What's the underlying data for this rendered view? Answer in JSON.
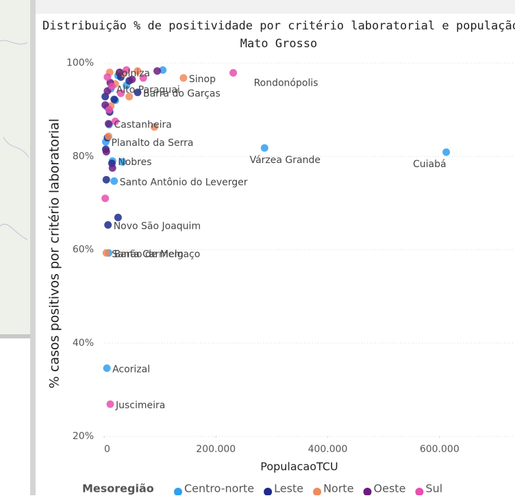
{
  "chart_data": {
    "type": "scatter",
    "title": "Distribuição % de positividade por critério laboratorial e população de Mato Grosso",
    "x_label": "PopulacaoTCU",
    "y_label": "% casos positivos por critério laboratorial",
    "legend_title": "Mesoregião",
    "xlim": [
      0,
      735000
    ],
    "ylim": [
      20,
      100
    ],
    "xticks": [
      0,
      {
        "value": 200000,
        "label": "200.000"
      },
      {
        "value": 400000,
        "label": "400.000"
      },
      {
        "value": 600000,
        "label": "600.000"
      }
    ],
    "yticks": [
      {
        "value": 20,
        "label": "20%"
      },
      {
        "value": 40,
        "label": "40%"
      },
      {
        "value": 60,
        "label": "60%"
      },
      {
        "value": 80,
        "label": "80%"
      },
      {
        "value": 100,
        "label": "100%"
      }
    ],
    "grid": true,
    "series": [
      {
        "name": "Centro-norte",
        "color": "#2f9ff0",
        "x": [
          287000,
          612000,
          12000,
          3000,
          15000,
          33000,
          18000,
          8000,
          5000,
          9000,
          40000,
          25000,
          105000,
          6000,
          20000
        ],
        "values": [
          81.8,
          80.9,
          94.5,
          83.1,
          79.0,
          78.8,
          74.7,
          59.3,
          34.6,
          86.8,
          95.2,
          97.3,
          98.5,
          90.5,
          92.0
        ],
        "point_labels": [
          "Várzea Grande",
          "Cuiabá",
          "Alto Paraguai",
          "Planalto da Serra",
          "Nobres",
          null,
          "Santo Antônio do Leverger",
          "Barão de Melgaço",
          "Acorizal",
          null,
          null,
          null,
          null,
          null,
          null
        ]
      },
      {
        "name": "Leste",
        "color": "#1f2a8a",
        "x": [
          60000,
          7000,
          25000,
          4000,
          14000,
          3000,
          30000,
          10000,
          6000,
          45000,
          18000,
          2000
        ],
        "values": [
          93.7,
          65.3,
          66.9,
          75.0,
          78.5,
          81.5,
          97.0,
          89.5,
          84.0,
          96.2,
          92.2,
          92.8
        ],
        "point_labels": [
          "Barra do Garças",
          "Novo São Joaquim",
          null,
          null,
          null,
          null,
          null,
          null,
          null,
          null,
          null,
          null
        ]
      },
      {
        "name": "Norte",
        "color": "#f08a5d",
        "x": [
          10000,
          142000,
          90000,
          4000,
          8000,
          45000,
          35000,
          20000,
          60000,
          12000
        ],
        "values": [
          98.0,
          96.8,
          86.3,
          59.3,
          84.3,
          92.8,
          97.8,
          95.5,
          98.3,
          90.8
        ],
        "point_labels": [
          "Colniza",
          "Sinop",
          null,
          "Santa Carmem",
          null,
          null,
          null,
          null,
          null,
          null
        ]
      },
      {
        "name": "Oeste",
        "color": "#6b1d7d",
        "x": [
          8000,
          95000,
          50000,
          4000,
          15000,
          2000,
          28000,
          6000,
          11000
        ],
        "values": [
          87.0,
          98.3,
          96.5,
          81.0,
          77.5,
          91.0,
          98.0,
          94.0,
          95.8
        ],
        "point_labels": [
          "Castanheira",
          null,
          null,
          null,
          null,
          null,
          null,
          null,
          null
        ]
      },
      {
        "name": "Sul",
        "color": "#e84fae",
        "x": [
          231000,
          11000,
          2000,
          70000,
          20000,
          40000,
          6000,
          14000,
          30000,
          9000
        ],
        "values": [
          97.9,
          26.9,
          71.0,
          96.8,
          87.5,
          98.5,
          97.0,
          95.0,
          93.5,
          90.0
        ],
        "point_labels": [
          "Rondonópolis",
          "Juscimeira",
          null,
          null,
          null,
          null,
          null,
          null,
          null,
          null
        ]
      }
    ]
  }
}
